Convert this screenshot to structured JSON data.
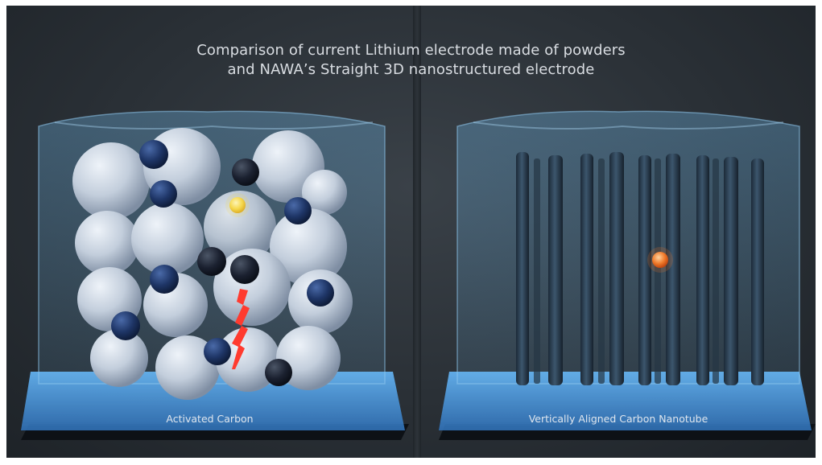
{
  "title": {
    "line1": "Comparison of current Lithium electrode made of powders",
    "line2": "and NAWA’s Straight 3D nanostructured electrode"
  },
  "panels": {
    "left": {
      "caption": "Activated Carbon"
    },
    "right": {
      "caption": "Vertically Aligned Carbon Nanotube"
    }
  },
  "colors": {
    "background": "#2c3238",
    "glass": "#6fb6e6",
    "base_glow": "#3d9cff",
    "sphere": "#c9d3e0",
    "ion_dark": "#1c2f55",
    "lithium_left": "#f3d55a",
    "lithium_right": "#f07a2a",
    "crack": "#ff3b2f",
    "nanotube": "#2f4457"
  }
}
